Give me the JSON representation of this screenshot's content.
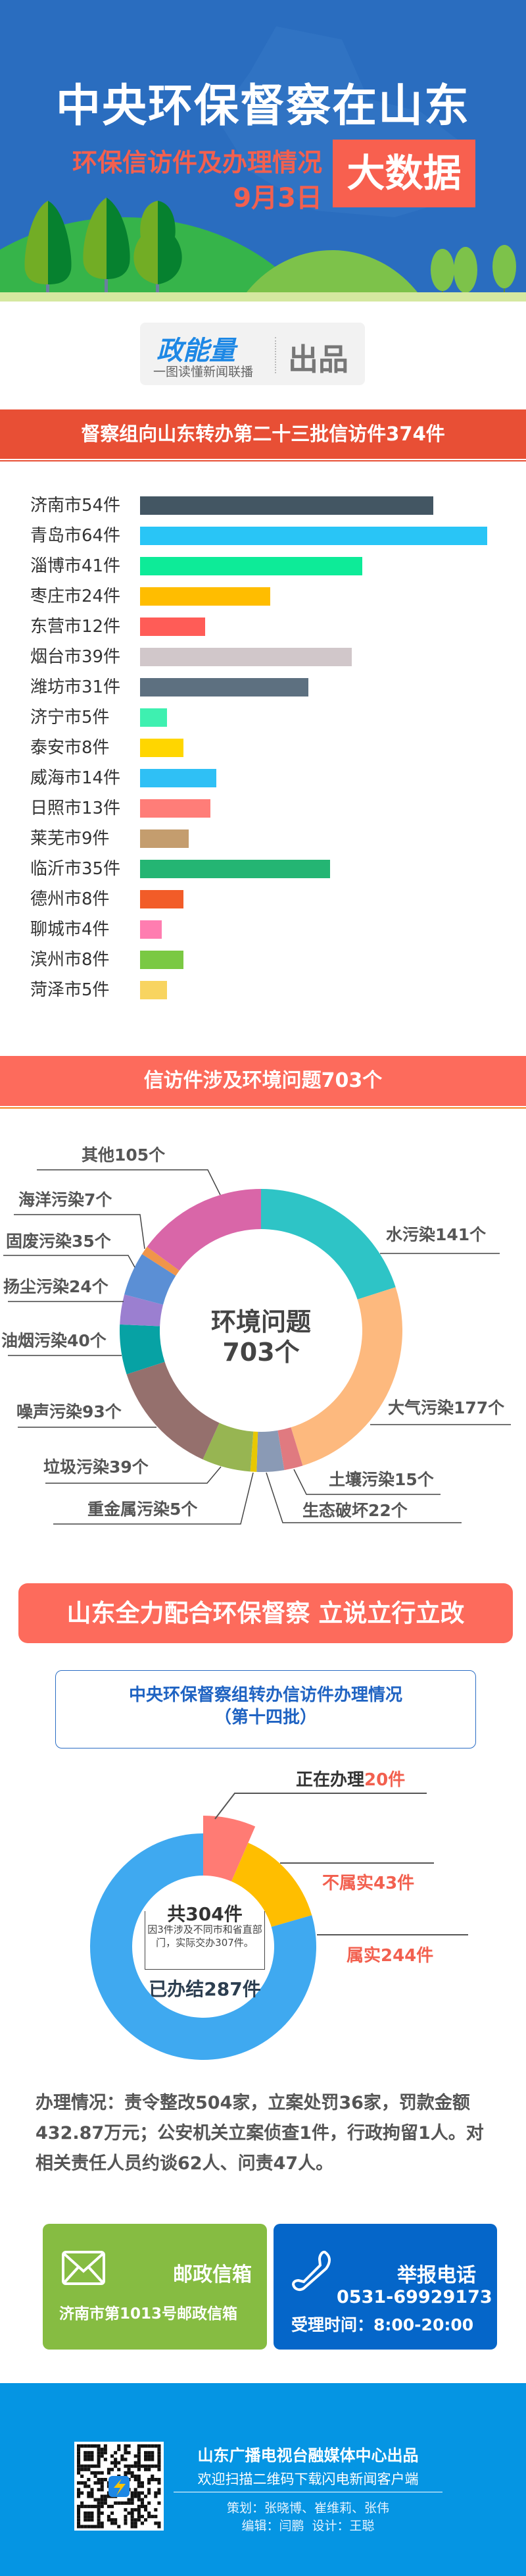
{
  "header": {
    "title": "中央环保督察在山东",
    "subtitle": "环保信访件及办理情况",
    "date": "9月3日",
    "badge": "大数据"
  },
  "producer": {
    "logo_text": "政能量",
    "logo_tagline": "一图读懂新闻联播",
    "label": "出品"
  },
  "section1": {
    "title": "督察组向山东转办第二十三批信访件374件"
  },
  "chart_data": [
    {
      "type": "bar",
      "orientation": "horizontal",
      "title": "督察组向山东转办第二十三批信访件374件",
      "categories": [
        "济南市",
        "青岛市",
        "淄博市",
        "枣庄市",
        "东营市",
        "烟台市",
        "潍坊市",
        "济宁市",
        "泰安市",
        "威海市",
        "日照市",
        "莱芜市",
        "临沂市",
        "德州市",
        "聊城市",
        "滨州市",
        "菏泽市"
      ],
      "values": [
        54,
        64,
        41,
        24,
        12,
        39,
        31,
        5,
        8,
        14,
        13,
        9,
        35,
        8,
        4,
        8,
        5
      ],
      "labels": [
        "济南市54件",
        "青岛市64件",
        "淄博市41件",
        "枣庄市24件",
        "东营市12件",
        "烟台市39件",
        "潍坊市31件",
        "济宁市5件",
        "泰安市8件",
        "威海市14件",
        "日照市13件",
        "莱芜市9件",
        "临沂市35件",
        "德州市8件",
        "聊城市4件",
        "滨州市8件",
        "菏泽市5件"
      ],
      "colors": [
        "#435663",
        "#29c5f6",
        "#0deb98",
        "#ffbd00",
        "#ff5c57",
        "#d1c7ca",
        "#5d7080",
        "#3ef0b0",
        "#ffd600",
        "#2fc0f5",
        "#ff7d78",
        "#c49d6e",
        "#24b573",
        "#f25c28",
        "#ff7db0",
        "#7ac943",
        "#f8d460"
      ],
      "grid": false
    },
    {
      "type": "pie",
      "donut": true,
      "title": "信访件涉及环境问题703个",
      "center_label": [
        "环境问题",
        "703个"
      ],
      "categories": [
        "水污染",
        "大气污染",
        "土壤污染",
        "生态破坏",
        "重金属污染",
        "垃圾污染",
        "噪声污染",
        "油烟污染",
        "扬尘污染",
        "固废污染",
        "海洋污染",
        "其他"
      ],
      "values": [
        141,
        177,
        15,
        22,
        5,
        39,
        93,
        40,
        24,
        35,
        7,
        105
      ],
      "labels": [
        "水污染141个",
        "大气污染177个",
        "土壤污染15个",
        "生态破坏22个",
        "重金属污染5个",
        "垃圾污染39个",
        "噪声污染93个",
        "油烟污染40个",
        "扬尘污染24个",
        "固废污染35个",
        "海洋污染7个",
        "其他105个"
      ],
      "colors": [
        "#2ec4c6",
        "#fdb97e",
        "#e07a80",
        "#8a9ab5",
        "#e8c800",
        "#97b552",
        "#95706d",
        "#07a2a4",
        "#9b7fd0",
        "#5b8fd5",
        "#f0954a",
        "#d966a8"
      ]
    },
    {
      "type": "pie",
      "donut": true,
      "title": "中央环保督察组转办信访件办理情况（第十四批）",
      "categories": [
        "正在办理",
        "不属实",
        "属实"
      ],
      "values": [
        20,
        43,
        244
      ],
      "colors": [
        "#ff7b74",
        "#ffbe00",
        "#3fa9f0"
      ],
      "center_total": "共304件",
      "center_note": "因3件涉及不同市和省直部门，实际交办307件。",
      "center_done": "已办结287件"
    }
  ],
  "section2": {
    "title": "信访件涉及环境问题703个",
    "center_line1": "环境问题",
    "center_line2": "703个"
  },
  "section3": {
    "banner": "山东全力配合环保督察 立说立行立改",
    "box_title": "中央环保督察组转办信访件办理情况",
    "box_subtitle": "（第十四批）",
    "in_progress_label": "正在办理",
    "in_progress_value": "20件",
    "untrue_label": "不属实43件",
    "true_label": "属实244件",
    "total": "共304件",
    "note": "因3件涉及不同市和省直部门，实际交办307件。",
    "done": "已办结287件",
    "summary": "办理情况：责令整改504家，立案处罚36家，罚款金额432.87万元；公安机关立案侦查1件，行政拘留1人。对相关责任人员约谈62人、问责47人。"
  },
  "contact": {
    "mail": {
      "icon": "envelope-icon",
      "title": "邮政信箱",
      "address": "济南市第1013号邮政信箱",
      "color": "#86bc42"
    },
    "phone": {
      "icon": "phone-icon",
      "title": "举报电话",
      "number": "0531-69929173",
      "hours": "受理时间：8:00-20:00",
      "color": "#0566c9"
    }
  },
  "footer": {
    "producer": "山东广播电视台融媒体中心出品",
    "invite": "欢迎扫描二维码下载闪电新闻客户端",
    "planning": "策划：张晓博、崔维莉、张伟",
    "editing": "编辑：闫鹏  设计：王聪",
    "qr_icon": "qr-code-icon",
    "color": "#0595e3"
  }
}
